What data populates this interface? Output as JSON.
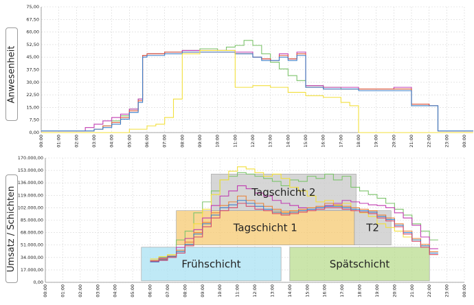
{
  "labels": {
    "top_panel": "Anwesenheit",
    "bottom_panel": "Umsatz / Schichten"
  },
  "chart_data": [
    {
      "type": "line",
      "ylabel": "Anwesenheit",
      "ylim": [
        0,
        75
      ],
      "yticks": [
        "0,00",
        "7,50",
        "15,00",
        "22,50",
        "30,00",
        "37,50",
        "45,00",
        "52,50",
        "60,00",
        "67,50",
        "75,00"
      ],
      "xticks": [
        "00:00",
        "01:00",
        "02:00",
        "03:00",
        "04:00",
        "05:00",
        "06:00",
        "07:00",
        "08:00",
        "09:00",
        "10:00",
        "11:00",
        "12:00",
        "13:00",
        "14:00",
        "15:00",
        "16:00",
        "17:00",
        "18:00",
        "19:00",
        "20:00",
        "21:00",
        "22:00",
        "23:00",
        "00:00"
      ],
      "grid": true,
      "series": [
        {
          "color": "#7cc36b",
          "x": [
            0,
            2.5,
            3,
            3.5,
            4,
            4.5,
            5,
            5.5,
            5.75,
            6,
            7,
            8,
            9,
            10,
            10.5,
            11,
            11.5,
            12,
            12.5,
            13,
            13.5,
            14,
            14.5,
            15,
            16,
            17,
            18,
            19,
            20,
            21,
            22,
            22.5,
            23,
            24
          ],
          "values": [
            1,
            1,
            2,
            4,
            7,
            10,
            14,
            20,
            46,
            47,
            48,
            49,
            50,
            49,
            51,
            52,
            55,
            52,
            47,
            42,
            38,
            34,
            31,
            28,
            27,
            26,
            26,
            26,
            26,
            16,
            16,
            1,
            1,
            1
          ]
        },
        {
          "color": "#c03ab0",
          "x": [
            0,
            2,
            2.5,
            3,
            3.5,
            4,
            4.5,
            5,
            5.5,
            5.75,
            6,
            7,
            8,
            9,
            10,
            11,
            12,
            12.5,
            13,
            13.5,
            14,
            14.5,
            15,
            16,
            17,
            18,
            19,
            20,
            21,
            22,
            22.5,
            24
          ],
          "values": [
            1,
            1,
            3,
            5,
            7,
            9,
            11,
            14,
            20,
            46,
            47,
            48,
            49,
            49,
            49,
            48,
            45,
            44,
            43,
            47,
            44,
            48,
            28,
            27,
            27,
            26,
            26,
            27,
            17,
            16,
            1,
            1
          ]
        },
        {
          "color": "#e05a3a",
          "x": [
            0,
            2.5,
            3,
            3.5,
            4,
            4.5,
            5,
            5.5,
            5.75,
            6,
            7,
            8,
            9,
            10,
            11,
            12,
            12.5,
            13,
            13.5,
            14,
            14.5,
            15,
            16,
            17,
            18,
            19,
            20,
            21,
            22,
            22.5,
            24
          ],
          "values": [
            1,
            1,
            2,
            4,
            6,
            9,
            13,
            19,
            46,
            47,
            48,
            48,
            48,
            48,
            47,
            45,
            44,
            43,
            46,
            44,
            47,
            27,
            26,
            26,
            26,
            26,
            26,
            17,
            16,
            1,
            1
          ]
        },
        {
          "color": "#3b7ec8",
          "x": [
            0,
            2.5,
            3,
            3.5,
            4,
            4.5,
            5,
            5.5,
            5.75,
            6,
            7,
            8,
            9,
            10,
            11,
            12,
            12.5,
            13,
            13.5,
            14,
            14.5,
            15,
            16,
            17,
            18,
            19,
            20,
            21,
            22,
            22.5,
            24
          ],
          "values": [
            1,
            1,
            2,
            3,
            5,
            8,
            12,
            18,
            45,
            46,
            47,
            48,
            48,
            48,
            47,
            45,
            43,
            43,
            45,
            43,
            46,
            27,
            26,
            26,
            25,
            25,
            25,
            16,
            16,
            1,
            1
          ]
        },
        {
          "color": "#f2df3a",
          "x": [
            0,
            5,
            6,
            6.5,
            7,
            7.5,
            8,
            9,
            10,
            11,
            12,
            13,
            14,
            15,
            16,
            17,
            17.5,
            18,
            19,
            24
          ],
          "values": [
            0,
            2,
            4,
            5,
            9,
            20,
            47,
            49,
            49,
            27,
            28,
            27,
            24,
            22,
            21,
            18,
            16,
            0,
            0,
            0
          ]
        }
      ]
    },
    {
      "type": "area",
      "ylabel": "Umsatz / Schichten",
      "ylim": [
        0,
        170000
      ],
      "yticks": [
        "0,00",
        "17.000,00",
        "34.000,00",
        "51.000,00",
        "68.000,00",
        "85.000,00",
        "102.000,00",
        "119.000,00",
        "136.000,00",
        "153.000,00",
        "170.000,00"
      ],
      "xticks": [
        "00:00",
        "01:00",
        "02:00",
        "03:00",
        "04:00",
        "05:00",
        "06:00",
        "07:00",
        "08:00",
        "09:00",
        "10:00",
        "11:00",
        "12:00",
        "13:00",
        "14:00",
        "15:00",
        "16:00",
        "17:00",
        "18:00",
        "19:00",
        "20:00",
        "21:00",
        "22:00",
        "23:00",
        "00:00"
      ],
      "shifts": [
        {
          "name": "Frühschicht",
          "start": 5.5,
          "end": 13.5,
          "low": 2000,
          "high": 48000,
          "color": "#a9e2f3"
        },
        {
          "name": "Spätschicht",
          "start": 14,
          "end": 22,
          "low": 2000,
          "high": 48000,
          "color": "#b9dc8f"
        },
        {
          "name": "Tagschicht 1",
          "start": 7.5,
          "end": 17.7,
          "low": 51000,
          "high": 98000,
          "color": "#f5c971"
        },
        {
          "name": "T2",
          "start": 17.7,
          "end": 19.8,
          "low": 51000,
          "high": 98000,
          "color": "#c8c8c8"
        },
        {
          "name": "Tagschicht 2",
          "start": 9.5,
          "end": 17.8,
          "low": 98000,
          "high": 148000,
          "color": "#c8c8c8"
        }
      ],
      "series": [
        {
          "color": "#7cc36b",
          "x": [
            6,
            6.5,
            7,
            7.5,
            8,
            8.5,
            9,
            9.5,
            10,
            10.5,
            11,
            11.5,
            12,
            12.5,
            13,
            13.5,
            14,
            14.5,
            15,
            15.5,
            16,
            16.5,
            17,
            17.5,
            18,
            18.5,
            19,
            19.5,
            20,
            20.5,
            21,
            21.5,
            22
          ],
          "values": [
            30000,
            34000,
            38000,
            58000,
            70000,
            95000,
            110000,
            125000,
            140000,
            145000,
            150000,
            148000,
            145000,
            142000,
            138000,
            132000,
            140000,
            138000,
            145000,
            142000,
            148000,
            140000,
            145000,
            130000,
            125000,
            120000,
            115000,
            108000,
            100000,
            92000,
            80000,
            70000,
            58000
          ]
        },
        {
          "color": "#f2df3a",
          "x": [
            6,
            6.5,
            7,
            7.5,
            8,
            8.5,
            9,
            9.5,
            10,
            10.5,
            11,
            11.5,
            12,
            12.5,
            13,
            13.5,
            14,
            14.5,
            15,
            15.5,
            16,
            16.5,
            17,
            17.5,
            18,
            18.5,
            19,
            19.5,
            20,
            20.5,
            21,
            21.5,
            22
          ],
          "values": [
            32000,
            35000,
            38000,
            42000,
            60000,
            80000,
            100000,
            120000,
            140000,
            152000,
            158000,
            155000,
            150000,
            145000,
            148000,
            142000,
            130000,
            125000,
            118000,
            110000,
            112000,
            105000,
            108000,
            100000,
            95000,
            90000,
            80000,
            75000,
            70000,
            62000,
            58000,
            50000,
            38000
          ]
        },
        {
          "color": "#c03ab0",
          "x": [
            6,
            6.5,
            7,
            7.5,
            8,
            8.5,
            9,
            9.5,
            10,
            10.5,
            11,
            11.5,
            12,
            12.5,
            13,
            13.5,
            14,
            14.5,
            15,
            15.5,
            16,
            16.5,
            17,
            17.5,
            18,
            18.5,
            19,
            19.5,
            20,
            20.5,
            21,
            21.5,
            22
          ],
          "values": [
            28000,
            33000,
            36000,
            48000,
            60000,
            72000,
            88000,
            105000,
            118000,
            125000,
            132000,
            128000,
            122000,
            118000,
            112000,
            108000,
            105000,
            102000,
            100000,
            102000,
            105000,
            108000,
            112000,
            110000,
            108000,
            106000,
            105000,
            102000,
            95000,
            88000,
            78000,
            62000,
            46000
          ]
        },
        {
          "color": "#e8823a",
          "x": [
            6,
            6.5,
            7,
            7.5,
            8,
            8.5,
            9,
            9.5,
            10,
            10.5,
            11,
            11.5,
            12,
            12.5,
            13,
            13.5,
            14,
            14.5,
            15,
            15.5,
            16,
            16.5,
            17,
            17.5,
            18,
            18.5,
            19,
            19.5,
            20,
            20.5,
            21,
            21.5,
            22
          ],
          "values": [
            30000,
            32000,
            36000,
            44000,
            55000,
            68000,
            82000,
            95000,
            105000,
            110000,
            118000,
            112000,
            108000,
            104000,
            100000,
            96000,
            98000,
            100000,
            102000,
            104000,
            108000,
            106000,
            104000,
            102000,
            100000,
            98000,
            92000,
            88000,
            80000,
            70000,
            60000,
            52000,
            42000
          ]
        },
        {
          "color": "#3b7ec8",
          "x": [
            6,
            6.5,
            7,
            7.5,
            8,
            8.5,
            9,
            9.5,
            10,
            10.5,
            11,
            11.5,
            12,
            12.5,
            13,
            13.5,
            14,
            14.5,
            15,
            15.5,
            16,
            16.5,
            17,
            17.5,
            18,
            18.5,
            19,
            19.5,
            20,
            20.5,
            21,
            21.5,
            22
          ],
          "values": [
            28000,
            31000,
            35000,
            42000,
            52000,
            66000,
            80000,
            92000,
            102000,
            106000,
            112000,
            108000,
            104000,
            100000,
            96000,
            94000,
            96000,
            98000,
            100000,
            102000,
            104000,
            104000,
            102000,
            100000,
            98000,
            96000,
            90000,
            86000,
            78000,
            68000,
            58000,
            50000,
            40000
          ]
        },
        {
          "color": "#d24a6a",
          "x": [
            6,
            6.5,
            7,
            7.5,
            8,
            8.5,
            9,
            9.5,
            10,
            10.5,
            11,
            11.5,
            12,
            12.5,
            13,
            13.5,
            14,
            14.5,
            15,
            15.5,
            16,
            16.5,
            17,
            17.5,
            18,
            18.5,
            19,
            19.5,
            20,
            20.5,
            21,
            21.5,
            22
          ],
          "values": [
            29000,
            30000,
            34000,
            40000,
            50000,
            62000,
            76000,
            88000,
            98000,
            102000,
            108000,
            104000,
            100000,
            98000,
            94000,
            92000,
            94000,
            96000,
            98000,
            100000,
            102000,
            102000,
            100000,
            98000,
            96000,
            94000,
            88000,
            84000,
            76000,
            66000,
            56000,
            48000,
            38000
          ]
        }
      ]
    }
  ]
}
